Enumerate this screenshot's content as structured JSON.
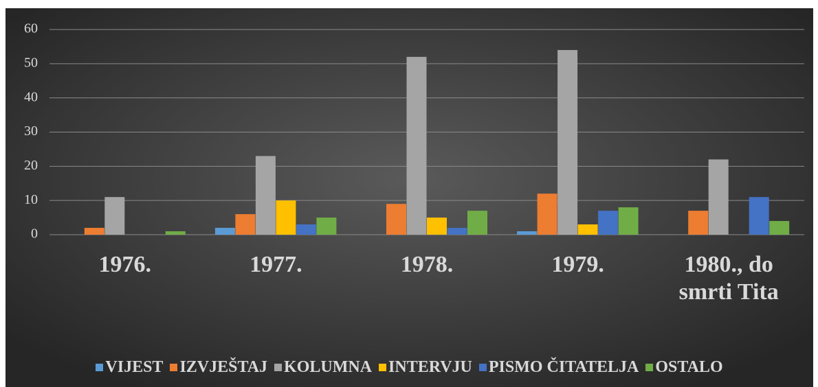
{
  "chart_data": {
    "type": "bar",
    "categories": [
      "1976.",
      "1977.",
      "1978.",
      "1979.",
      "1980., do smrti Tita"
    ],
    "series": [
      {
        "name": "VIJEST",
        "color": "#5b9bd5",
        "values": [
          0,
          2,
          0,
          1,
          0
        ]
      },
      {
        "name": "IZVJEŠTAJ",
        "color": "#ed7d31",
        "values": [
          2,
          6,
          9,
          12,
          7
        ]
      },
      {
        "name": "KOLUMNA",
        "color": "#a5a5a5",
        "values": [
          11,
          23,
          52,
          54,
          22
        ]
      },
      {
        "name": "INTERVJU",
        "color": "#ffc000",
        "values": [
          0,
          10,
          5,
          3,
          0
        ]
      },
      {
        "name": "PISMO ČITATELJA",
        "color": "#4472c4",
        "values": [
          0,
          3,
          2,
          7,
          11
        ]
      },
      {
        "name": "OSTALO",
        "color": "#70ad47",
        "values": [
          1,
          5,
          7,
          8,
          4
        ]
      }
    ],
    "ylim": [
      0,
      60
    ],
    "yticks": [
      0,
      10,
      20,
      30,
      40,
      50,
      60
    ],
    "grid": true,
    "legend": "bottom"
  }
}
